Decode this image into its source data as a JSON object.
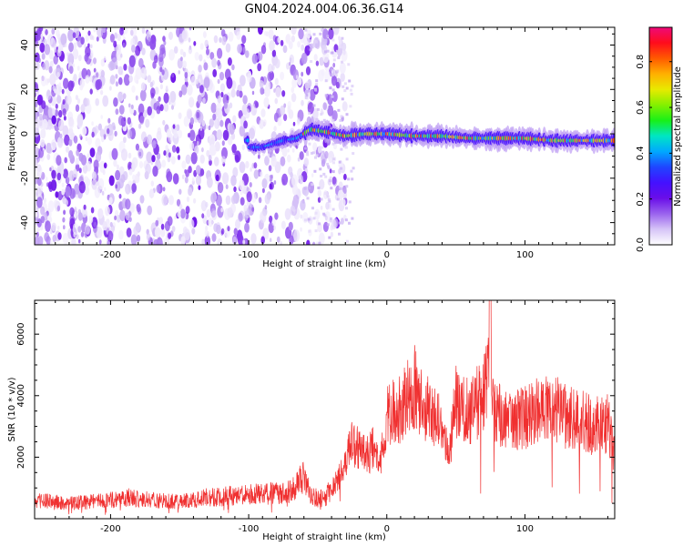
{
  "page": {
    "title": "GN04.2024.004.06.36.G14"
  },
  "chart_data": [
    {
      "type": "heatmap",
      "xlabel": "Height of straight line (km)",
      "ylabel": "Frequency (Hz)",
      "xlim": [
        -255,
        165
      ],
      "ylim": [
        -50,
        48
      ],
      "xticks": [
        -200,
        -100,
        0,
        100
      ],
      "yticks": [
        -40,
        -20,
        0,
        20,
        40
      ],
      "colorbar": {
        "label": "Normalized spectral amplitude",
        "range": [
          0.0,
          0.95
        ],
        "ticks": [
          0.0,
          0.2,
          0.4,
          0.6,
          0.8
        ],
        "colors": [
          "#ffffff",
          "#d6c4f7",
          "#9a63ee",
          "#6a0ee8",
          "#4410ff",
          "#1f45ff",
          "#00a8ff",
          "#00e6c4",
          "#18f018",
          "#84f000",
          "#e8ea00",
          "#ffb000",
          "#ff5a00",
          "#ff0c1c",
          "#ee0a7a"
        ]
      },
      "ridge": {
        "description_points": [
          {
            "x": -100,
            "y": -6
          },
          {
            "x": -90,
            "y": -6
          },
          {
            "x": -75,
            "y": -3
          },
          {
            "x": -65,
            "y": -2
          },
          {
            "x": -55,
            "y": 2
          },
          {
            "x": -45,
            "y": 1
          },
          {
            "x": -30,
            "y": -1
          },
          {
            "x": -15,
            "y": 0
          },
          {
            "x": 0,
            "y": 0
          },
          {
            "x": 20,
            "y": -1
          },
          {
            "x": 40,
            "y": -1
          },
          {
            "x": 60,
            "y": -2
          },
          {
            "x": 80,
            "y": -2
          },
          {
            "x": 100,
            "y": -2
          },
          {
            "x": 120,
            "y": -3
          },
          {
            "x": 140,
            "y": -3
          },
          {
            "x": 160,
            "y": -3
          }
        ]
      }
    },
    {
      "type": "line",
      "xlabel": "Height of straight line (km)",
      "ylabel": "SNR (10 * v/v)",
      "xlim": [
        -255,
        165
      ],
      "ylim": [
        0,
        7100
      ],
      "xticks": [
        -200,
        -100,
        0,
        100
      ],
      "yticks": [
        2000,
        4000,
        6000
      ],
      "series": [
        {
          "color": "#f03030",
          "x": [
            -255,
            -230,
            -200,
            -190,
            -170,
            -150,
            -130,
            -110,
            -90,
            -70,
            -60,
            -55,
            -50,
            -45,
            -40,
            -35,
            -30,
            -25,
            -20,
            -15,
            -10,
            -5,
            0,
            10,
            20,
            30,
            40,
            45,
            50,
            60,
            70,
            73,
            76,
            80,
            90,
            100,
            110,
            120,
            130,
            140,
            150,
            160,
            165
          ],
          "y": [
            600,
            500,
            600,
            700,
            600,
            550,
            700,
            750,
            800,
            900,
            1300,
            800,
            650,
            700,
            1000,
            1300,
            1800,
            2500,
            2200,
            2000,
            2300,
            1700,
            3300,
            3600,
            4300,
            3500,
            3000,
            2000,
            3800,
            3500,
            4000,
            5000,
            3700,
            3400,
            3100,
            3300,
            3500,
            3600,
            3300,
            3200,
            3000,
            3100,
            2000
          ]
        }
      ]
    }
  ]
}
